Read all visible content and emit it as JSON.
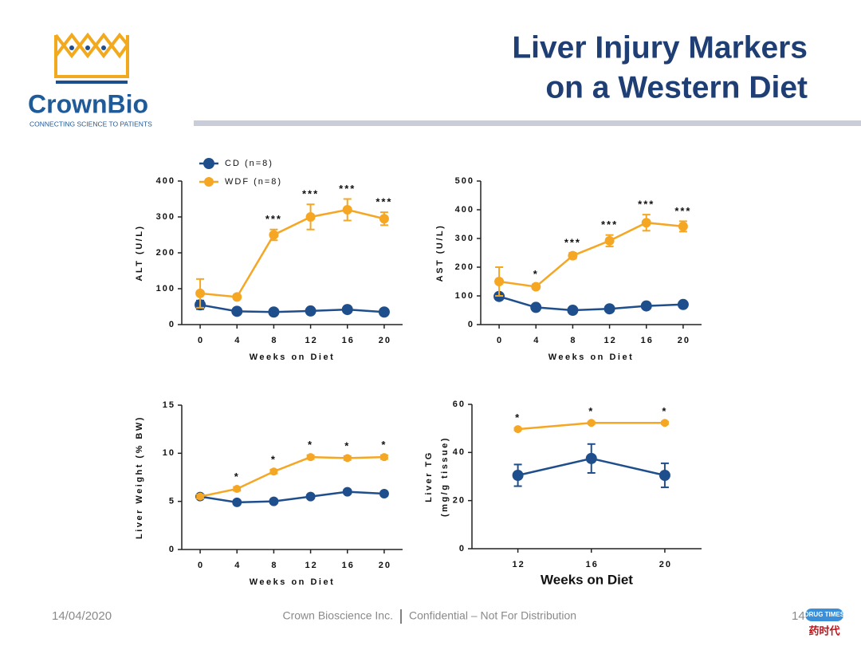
{
  "slide": {
    "title_lines": [
      "Liver Injury Markers",
      "on a Western Diet"
    ],
    "logo": {
      "name": "CrownBio",
      "tagline": "CONNECTING SCIENCE TO PATIENTS"
    },
    "footer": {
      "date": "14/04/2020",
      "company": "Crown Bioscience Inc.",
      "notice": "Confidential – Not For Distribution",
      "page": "14"
    },
    "watermark": {
      "latin": "DRUG TIMES",
      "chinese": "药时代"
    }
  },
  "chart_data": [
    {
      "type": "line",
      "ylabel": [
        "ALT (U/L)"
      ],
      "xlabel": "Weeks on Diet",
      "x": [
        0,
        4,
        8,
        12,
        16,
        20
      ],
      "xlim": [
        -2,
        22
      ],
      "xticks": [
        0,
        4,
        8,
        12,
        16,
        20
      ],
      "ylim": [
        0,
        400
      ],
      "yticks": [
        0,
        100,
        200,
        300,
        400
      ],
      "legend": "top-left",
      "series": [
        {
          "name": "CD (n=8)",
          "color": "#1f4e8c",
          "values": [
            55,
            37,
            35,
            38,
            42,
            35
          ],
          "errors": [
            12,
            4,
            3,
            4,
            5,
            4
          ]
        },
        {
          "name": "WDF (n=8)",
          "color": "#f5a623",
          "values": [
            87,
            77,
            250,
            300,
            320,
            295
          ],
          "errors": [
            40,
            5,
            15,
            35,
            30,
            18
          ]
        }
      ],
      "annotations": [
        {
          "x": 8,
          "label": "***"
        },
        {
          "x": 12,
          "label": "***"
        },
        {
          "x": 16,
          "label": "***"
        },
        {
          "x": 20,
          "label": "***"
        }
      ]
    },
    {
      "type": "line",
      "ylabel": [
        "AST (U/L)"
      ],
      "xlabel": "Weeks on Diet",
      "x": [
        0,
        4,
        8,
        12,
        16,
        20
      ],
      "xlim": [
        -2,
        22
      ],
      "xticks": [
        0,
        4,
        8,
        12,
        16,
        20
      ],
      "ylim": [
        0,
        500
      ],
      "yticks": [
        0,
        100,
        200,
        300,
        400,
        500
      ],
      "series": [
        {
          "color": "#1f4e8c",
          "values": [
            98,
            60,
            50,
            55,
            65,
            70
          ],
          "errors": [
            8,
            5,
            4,
            5,
            6,
            5
          ]
        },
        {
          "color": "#f5a623",
          "values": [
            150,
            132,
            240,
            292,
            355,
            342
          ],
          "errors": [
            50,
            8,
            10,
            20,
            28,
            18
          ]
        }
      ],
      "annotations": [
        {
          "x": 4,
          "label": "*"
        },
        {
          "x": 8,
          "label": "***"
        },
        {
          "x": 12,
          "label": "***"
        },
        {
          "x": 16,
          "label": "***"
        },
        {
          "x": 20,
          "label": "***"
        }
      ]
    },
    {
      "type": "line",
      "ylabel": [
        "Liver Weight (% BW)"
      ],
      "xlabel": "Weeks on Diet",
      "x": [
        0,
        4,
        8,
        12,
        16,
        20
      ],
      "xlim": [
        -2,
        22
      ],
      "xticks": [
        0,
        4,
        8,
        12,
        16,
        20
      ],
      "ylim": [
        0,
        15
      ],
      "yticks": [
        0,
        5,
        10,
        15
      ],
      "series": [
        {
          "color": "#1f4e8c",
          "values": [
            5.5,
            4.9,
            5.0,
            5.5,
            6.0,
            5.8
          ],
          "errors": [
            0.2,
            0.2,
            0.2,
            0.2,
            0.2,
            0.2
          ]
        },
        {
          "color": "#f5a623",
          "values": [
            5.5,
            6.3,
            8.1,
            9.6,
            9.5,
            9.6
          ],
          "errors": [
            0.2,
            0.2,
            0.2,
            0.2,
            0.2,
            0.2
          ]
        }
      ],
      "annotations": [
        {
          "x": 4,
          "label": "*"
        },
        {
          "x": 8,
          "label": "*"
        },
        {
          "x": 12,
          "label": "*"
        },
        {
          "x": 16,
          "label": "*"
        },
        {
          "x": 20,
          "label": "*"
        }
      ]
    },
    {
      "type": "line",
      "ylabel": [
        "Liver TG",
        "(mg/g tissue)"
      ],
      "xlabel": "Weeks on Diet",
      "x": [
        12,
        16,
        20
      ],
      "xlim": [
        9.5,
        22
      ],
      "xticks": [
        12,
        16,
        20
      ],
      "ylim": [
        0,
        60
      ],
      "yticks": [
        0,
        20,
        40,
        60
      ],
      "series": [
        {
          "color": "#1f4e8c",
          "values": [
            30.5,
            37.5,
            30.5
          ],
          "errors": [
            4.5,
            6,
            5
          ]
        },
        {
          "color": "#f5a623",
          "values": [
            49.7,
            52.3,
            52.3
          ],
          "errors": [
            0.5,
            0.5,
            0.5
          ]
        }
      ],
      "annotations": [
        {
          "x": 12,
          "label": "*"
        },
        {
          "x": 16,
          "label": "*"
        },
        {
          "x": 20,
          "label": "*"
        }
      ]
    }
  ]
}
